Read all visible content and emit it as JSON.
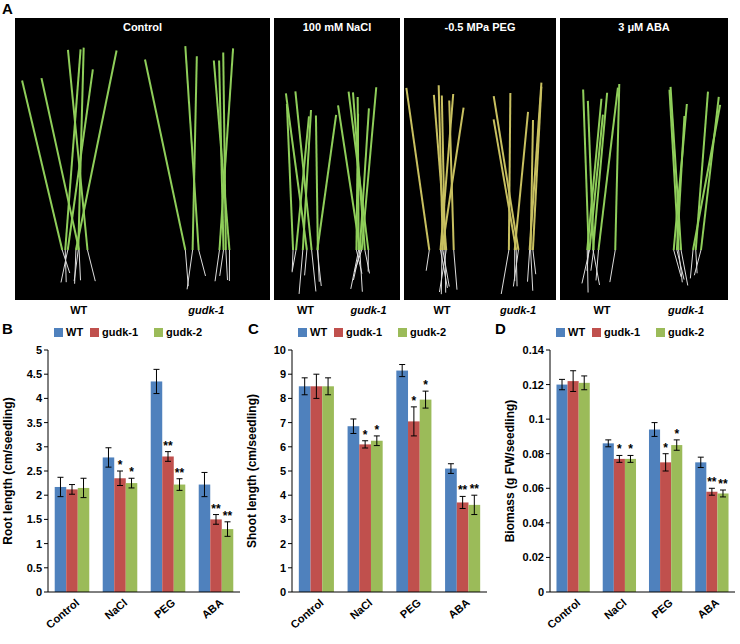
{
  "photo_panel": {
    "label": "A",
    "conditions": [
      "Control",
      "100 mM NaCl",
      "-0.5 MPa PEG",
      "3 μM ABA"
    ],
    "genotypes": [
      "WT",
      "gudk-1"
    ]
  },
  "chart_data": [
    {
      "type": "bar",
      "panel_label": "B",
      "y_label": "Root length (cm/seedling)",
      "categories": [
        "Control",
        "NaCl",
        "PEG",
        "ABA"
      ],
      "series": [
        {
          "name": "WT",
          "color": "#4f81bd",
          "values": [
            2.17,
            2.78,
            4.35,
            2.22
          ],
          "errors": [
            0.2,
            0.2,
            0.25,
            0.25
          ],
          "significance": [
            null,
            null,
            null,
            null
          ]
        },
        {
          "name": "gudk-1",
          "color": "#c0504d",
          "values": [
            2.12,
            2.35,
            2.8,
            1.5
          ],
          "errors": [
            0.1,
            0.15,
            0.1,
            0.1
          ],
          "significance": [
            null,
            "*",
            "**",
            "**"
          ]
        },
        {
          "name": "gudk-2",
          "color": "#9bbb59",
          "values": [
            2.15,
            2.25,
            2.22,
            1.3
          ],
          "errors": [
            0.2,
            0.1,
            0.12,
            0.15
          ],
          "significance": [
            null,
            "*",
            "**",
            "**"
          ]
        }
      ],
      "ylim": [
        0,
        5
      ],
      "yticks": [
        0,
        0.5,
        1,
        1.5,
        2,
        2.5,
        3,
        3.5,
        4,
        4.5,
        5
      ],
      "grid": false,
      "legend": "top"
    },
    {
      "type": "bar",
      "panel_label": "C",
      "y_label": "Shoot length (cm/seedling)",
      "categories": [
        "Control",
        "NaCl",
        "PEG",
        "ABA"
      ],
      "series": [
        {
          "name": "WT",
          "color": "#4f81bd",
          "values": [
            8.5,
            6.85,
            9.15,
            5.1
          ],
          "errors": [
            0.35,
            0.3,
            0.25,
            0.2
          ],
          "significance": [
            null,
            null,
            null,
            null
          ]
        },
        {
          "name": "gudk-1",
          "color": "#c0504d",
          "values": [
            8.5,
            6.1,
            7.05,
            3.7
          ],
          "errors": [
            0.5,
            0.15,
            0.6,
            0.25
          ],
          "significance": [
            null,
            "*",
            "*",
            "**"
          ]
        },
        {
          "name": "gudk-2",
          "color": "#9bbb59",
          "values": [
            8.5,
            6.25,
            7.95,
            3.6
          ],
          "errors": [
            0.35,
            0.2,
            0.35,
            0.4
          ],
          "significance": [
            null,
            "*",
            "*",
            "**"
          ]
        }
      ],
      "ylim": [
        0,
        10
      ],
      "yticks": [
        0,
        1,
        2,
        3,
        4,
        5,
        6,
        7,
        8,
        9,
        10
      ],
      "grid": false,
      "legend": "top"
    },
    {
      "type": "bar",
      "panel_label": "D",
      "y_label": "Biomass (g FW/seedling)",
      "categories": [
        "Control",
        "NaCl",
        "PEG",
        "ABA"
      ],
      "series": [
        {
          "name": "WT",
          "color": "#4f81bd",
          "values": [
            0.12,
            0.086,
            0.094,
            0.075
          ],
          "errors": [
            0.003,
            0.002,
            0.004,
            0.003
          ],
          "significance": [
            null,
            null,
            null,
            null
          ]
        },
        {
          "name": "gudk-1",
          "color": "#c0504d",
          "values": [
            0.122,
            0.077,
            0.075,
            0.058
          ],
          "errors": [
            0.006,
            0.002,
            0.005,
            0.002
          ],
          "significance": [
            null,
            "*",
            "*",
            "**"
          ]
        },
        {
          "name": "gudk-2",
          "color": "#9bbb59",
          "values": [
            0.121,
            0.077,
            0.085,
            0.057
          ],
          "errors": [
            0.004,
            0.002,
            0.003,
            0.002
          ],
          "significance": [
            null,
            "*",
            "*",
            "**"
          ]
        }
      ],
      "ylim": [
        0,
        0.14
      ],
      "yticks": [
        0,
        0.02,
        0.04,
        0.06,
        0.08,
        0.1,
        0.12,
        0.14
      ],
      "grid": false,
      "legend": "top"
    }
  ]
}
